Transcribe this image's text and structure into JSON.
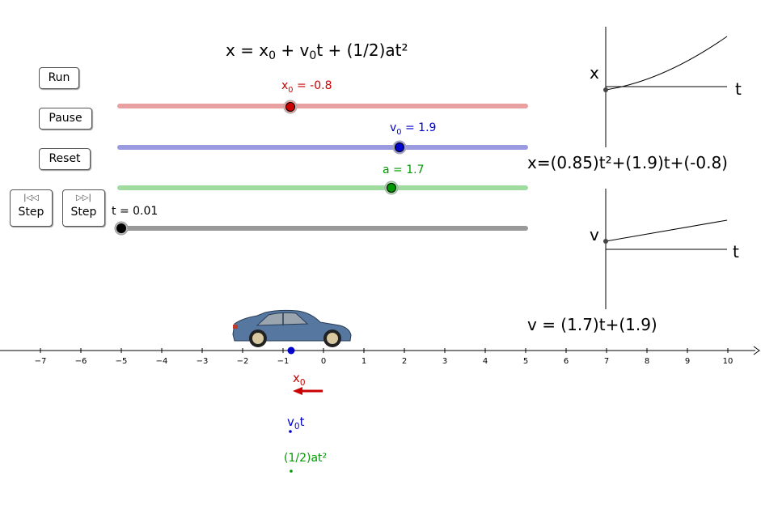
{
  "title": {
    "pre": "x = x",
    "s1": "0",
    "mid": " + v",
    "s2": "0",
    "post": "t + (1/2)at²"
  },
  "buttons": {
    "run": "Run",
    "pause": "Pause",
    "reset": "Reset",
    "step_back": "Step",
    "step_fwd": "Step",
    "step_back_icon": "step-back-icon",
    "step_fwd_icon": "step-forward-icon"
  },
  "sliders": [
    {
      "var": "x",
      "sub": "0",
      "text": " = -0.8",
      "color": "#cc0000",
      "track_color": "#e8a0a0",
      "value": -0.8,
      "min": -5,
      "max": 5
    },
    {
      "var": "v",
      "sub": "0",
      "text": " = 1.9",
      "color": "#0000cc",
      "track_color": "#9a9ae0",
      "value": 1.9,
      "min": -5,
      "max": 5
    },
    {
      "var": "a",
      "sub": "",
      "text": " = 1.7",
      "color": "#009900",
      "track_color": "#a0dca0",
      "value": 1.7,
      "min": -5,
      "max": 5
    },
    {
      "var": "t",
      "sub": "",
      "text": " = 0.01",
      "color": "#000000",
      "track_color": "#999999",
      "value": 0.01,
      "min": 0,
      "max": 10
    }
  ],
  "graphs": {
    "x_axis_label": "x",
    "x_t_label": "t",
    "x_equation": "x=(0.85)t²+(1.9)t+(-0.8)",
    "v_axis_label": "v",
    "v_t_label": "t",
    "v_equation": "v = (1.7)t+(1.9)"
  },
  "number_line": {
    "ticks": [
      "−7",
      "−6",
      "−5",
      "−4",
      "−3",
      "−2",
      "−1",
      "0",
      "1",
      "2",
      "3",
      "4",
      "5",
      "6",
      "7",
      "8",
      "9",
      "10"
    ],
    "tick_values": [
      -7,
      -6,
      -5,
      -4,
      -3,
      -2,
      -1,
      0,
      1,
      2,
      3,
      4,
      5,
      6,
      7,
      8,
      9,
      10
    ]
  },
  "vectors": {
    "x0": {
      "var": "x",
      "sub": "0",
      "post": "",
      "color": "#cc0000"
    },
    "v0t": {
      "var": "v",
      "sub": "0",
      "post": "t",
      "color": "#0000cc"
    },
    "accel": {
      "text": "(1/2)at²",
      "color": "#009900"
    }
  },
  "car_icon": "car-icon"
}
